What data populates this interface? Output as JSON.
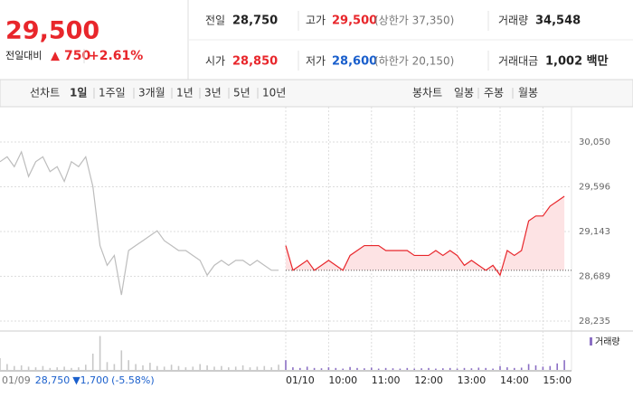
{
  "quote": {
    "price": "29,500",
    "change_label": "전일대비",
    "change_arrow": "▲",
    "change": "750",
    "change_pct": "+2.61%",
    "prev": {
      "label": "전일",
      "value": "28,750"
    },
    "high": {
      "label": "고가",
      "value": "29,500",
      "limit": "(상한가 37,350)"
    },
    "volume": {
      "label": "거래량",
      "value": "34,548"
    },
    "open": {
      "label": "시가",
      "value": "28,850"
    },
    "low": {
      "label": "저가",
      "value": "28,600",
      "limit": "(하한가 20,150)"
    },
    "amount": {
      "label": "거래대금",
      "value": "1,002 백만"
    }
  },
  "tabs": {
    "line_label": "선차트",
    "periods": [
      "1일",
      "1주일",
      "3개월",
      "1년",
      "3년",
      "5년",
      "10년"
    ],
    "candle_label": "봉차트",
    "candles": [
      "일봉",
      "주봉",
      "월봉"
    ]
  },
  "chart_data": {
    "type": "line",
    "categories": [
      null,
      null,
      null,
      null,
      null,
      null,
      null,
      null,
      null,
      null,
      null,
      null,
      null,
      null,
      null,
      null,
      null,
      null,
      null,
      null,
      null,
      null,
      null,
      null,
      null,
      null,
      null,
      null,
      null,
      null,
      null,
      null,
      null,
      null,
      null,
      null,
      null,
      null,
      null,
      null,
      "01/10",
      null,
      null,
      null,
      null,
      null,
      "10:00",
      null,
      null,
      null,
      null,
      null,
      "11:00",
      null,
      null,
      null,
      null,
      null,
      "12:00",
      null,
      null,
      null,
      null,
      null,
      "13:00",
      null,
      null,
      null,
      null,
      null,
      "14:00",
      null,
      null,
      null,
      null,
      null,
      "15:00",
      null,
      null,
      null
    ],
    "series": [
      {
        "color": "#bdbdbd",
        "values": [
          29850,
          29900,
          29800,
          29950,
          29700,
          29850,
          29900,
          29750,
          29800,
          29650,
          29850,
          29800,
          29900,
          29600,
          29000,
          28800,
          28900,
          28500,
          28950,
          29000,
          29050,
          29100,
          29150,
          29050,
          29000,
          28950,
          28950,
          28900,
          28850,
          28700,
          28800,
          28850,
          28800,
          28850,
          28850,
          28800,
          28850,
          28800,
          28750,
          28750,
          null,
          null,
          null,
          null,
          null,
          null,
          null,
          null,
          null,
          null,
          null,
          null,
          null,
          null,
          null,
          null,
          null,
          null,
          null,
          null,
          null,
          null,
          null,
          null,
          null,
          null,
          null,
          null,
          null,
          null,
          null,
          null,
          null,
          null,
          null,
          null,
          null,
          null,
          null,
          null
        ]
      },
      {
        "color": "#e8262b",
        "values": [
          null,
          null,
          null,
          null,
          null,
          null,
          null,
          null,
          null,
          null,
          null,
          null,
          null,
          null,
          null,
          null,
          null,
          null,
          null,
          null,
          null,
          null,
          null,
          null,
          null,
          null,
          null,
          null,
          null,
          null,
          null,
          null,
          null,
          null,
          null,
          null,
          null,
          null,
          null,
          null,
          29000,
          28750,
          28800,
          28850,
          28750,
          28800,
          28850,
          28800,
          28750,
          28900,
          28950,
          29000,
          29000,
          29000,
          28950,
          28950,
          28950,
          28950,
          28900,
          28900,
          28900,
          28950,
          28900,
          28950,
          28900,
          28800,
          28850,
          28800,
          28750,
          28800,
          28700,
          28950,
          28900,
          28950,
          29250,
          29300,
          29300,
          29400,
          29450,
          29500
        ]
      }
    ],
    "volume": {
      "name": "거래량",
      "color": "#8b6fc4",
      "values": [
        1800,
        900,
        600,
        700,
        500,
        400,
        600,
        300,
        400,
        500,
        300,
        400,
        800,
        2500,
        5200,
        1200,
        900,
        3000,
        1500,
        900,
        700,
        1100,
        600,
        500,
        800,
        600,
        400,
        500,
        900,
        700,
        500,
        600,
        400,
        500,
        700,
        400,
        500,
        600,
        400,
        800,
        1500,
        400,
        300,
        500,
        300,
        250,
        400,
        300,
        200,
        450,
        300,
        250,
        350,
        200,
        300,
        250,
        200,
        300,
        200,
        250,
        300,
        200,
        250,
        300,
        200,
        300,
        250,
        350,
        300,
        200,
        600,
        400,
        300,
        350,
        900,
        700,
        500,
        600,
        1000,
        1500
      ]
    },
    "ylim": [
      28235,
      30050
    ],
    "yticks": [
      {
        "value": 28235,
        "label": "28,235"
      },
      {
        "value": 28689,
        "label": "28,689"
      },
      {
        "value": 29143,
        "label": "29,143"
      },
      {
        "value": 29596,
        "label": "29,596"
      },
      {
        "value": 30050,
        "label": "30,050"
      }
    ],
    "grid": true,
    "prev_day": {
      "date": "01/09",
      "close": {
        "value": 28750,
        "label": "28,750"
      },
      "change": "▼1,700",
      "change_pct": "(-5.58%)"
    }
  }
}
